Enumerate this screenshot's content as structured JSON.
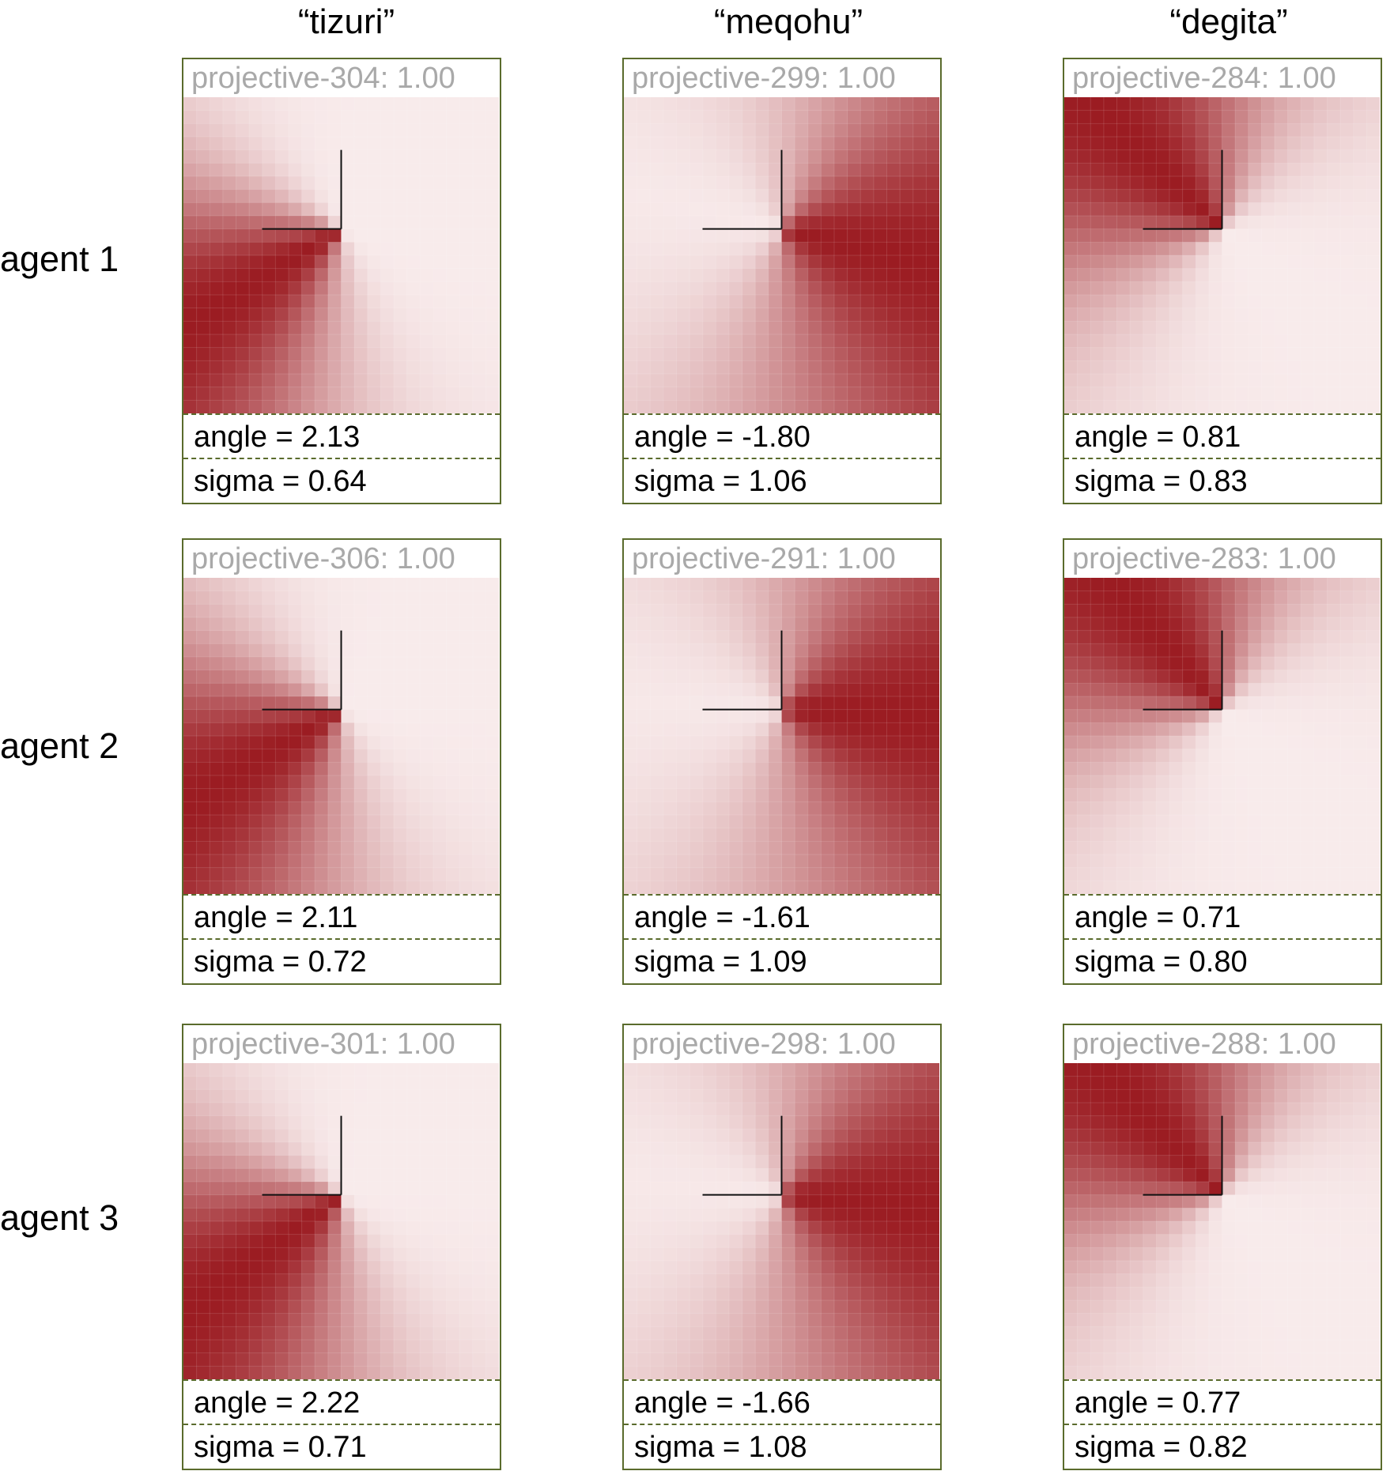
{
  "columns": [
    "“tizuri”",
    "“meqohu”",
    "“degita”"
  ],
  "rows": [
    "agent 1",
    "agent 2",
    "agent 3"
  ],
  "colors": {
    "border": "#5a6b2c",
    "heat_max": "#9b1c22",
    "heat_min": "#fdf6f6",
    "title_gray": "#a9a9a9"
  },
  "panels": [
    [
      {
        "title": "projective-304: 1.00",
        "angle": "angle = 2.13",
        "sigma": "sigma = 0.64",
        "angle_value": 2.13,
        "sigma_value": 0.64
      },
      {
        "title": "projective-299: 1.00",
        "angle": "angle = -1.80",
        "sigma": "sigma = 1.06",
        "angle_value": -1.8,
        "sigma_value": 1.06
      },
      {
        "title": "projective-284: 1.00",
        "angle": "angle = 0.81",
        "sigma": "sigma = 0.83",
        "angle_value": 0.81,
        "sigma_value": 0.83
      }
    ],
    [
      {
        "title": "projective-306: 1.00",
        "angle": "angle = 2.11",
        "sigma": "sigma = 0.72",
        "angle_value": 2.11,
        "sigma_value": 0.72
      },
      {
        "title": "projective-291: 1.00",
        "angle": "angle = -1.61",
        "sigma": "sigma = 1.09",
        "angle_value": -1.61,
        "sigma_value": 1.09
      },
      {
        "title": "projective-283: 1.00",
        "angle": "angle = 0.71",
        "sigma": "sigma = 0.80",
        "angle_value": 0.71,
        "sigma_value": 0.8
      }
    ],
    [
      {
        "title": "projective-301: 1.00",
        "angle": "angle = 2.22",
        "sigma": "sigma = 0.71",
        "angle_value": 2.22,
        "sigma_value": 0.71
      },
      {
        "title": "projective-298: 1.00",
        "angle": "angle = -1.66",
        "sigma": "sigma = 1.08",
        "angle_value": -1.66,
        "sigma_value": 1.08
      },
      {
        "title": "projective-288: 1.00",
        "angle": "angle = 0.77",
        "sigma": "sigma = 0.82",
        "angle_value": 0.77,
        "sigma_value": 0.82
      }
    ]
  ]
}
